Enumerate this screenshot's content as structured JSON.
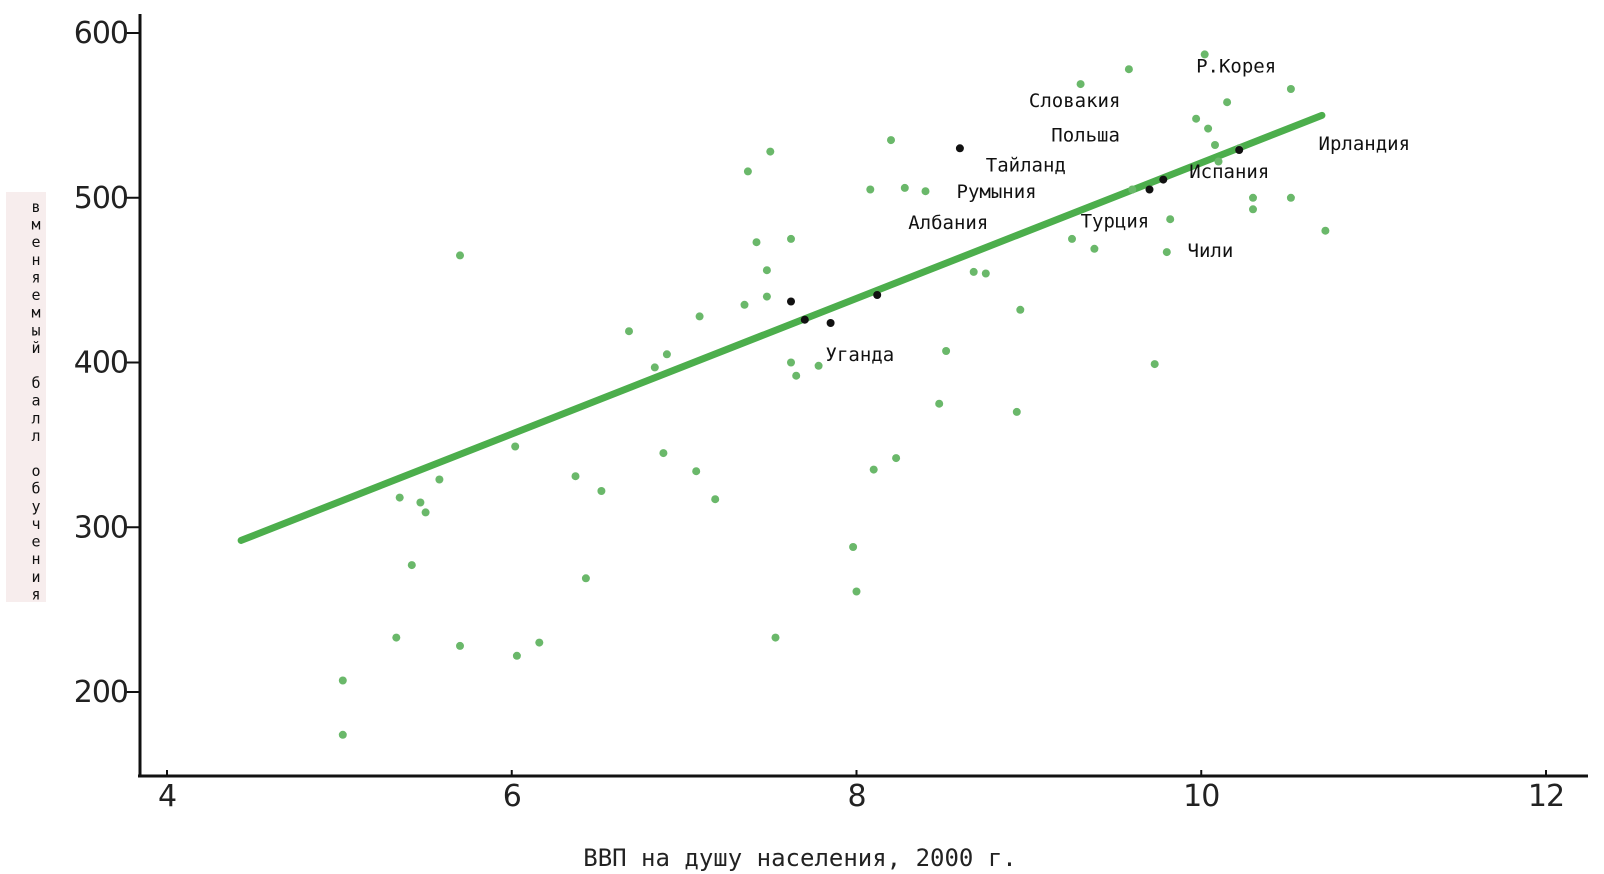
{
  "chart_data": {
    "type": "scatter",
    "xlabel": "ВВП на душу населения, 2000 г.",
    "ylabel": "вменяемый балл обучения",
    "xlim": [
      4,
      12
    ],
    "ylim": [
      175,
      610
    ],
    "x_ticks": [
      4,
      6,
      8,
      10,
      12
    ],
    "y_ticks": [
      200,
      300,
      400,
      500,
      600
    ],
    "grid": false,
    "colors": {
      "points": "#6ab86a",
      "trend": "#4cae4c",
      "highlight": "#111111",
      "axis": "#111111"
    },
    "trend_line": {
      "x": [
        4.43,
        10.7
      ],
      "y": [
        292,
        550
      ]
    },
    "points": [
      {
        "x": 5.02,
        "y": 207
      },
      {
        "x": 5.02,
        "y": 174
      },
      {
        "x": 5.33,
        "y": 233
      },
      {
        "x": 5.35,
        "y": 318
      },
      {
        "x": 5.47,
        "y": 315
      },
      {
        "x": 5.5,
        "y": 309
      },
      {
        "x": 5.58,
        "y": 329
      },
      {
        "x": 5.42,
        "y": 277
      },
      {
        "x": 5.7,
        "y": 228
      },
      {
        "x": 5.7,
        "y": 465
      },
      {
        "x": 6.02,
        "y": 349
      },
      {
        "x": 6.03,
        "y": 222
      },
      {
        "x": 6.16,
        "y": 230
      },
      {
        "x": 6.37,
        "y": 331
      },
      {
        "x": 6.43,
        "y": 269
      },
      {
        "x": 6.52,
        "y": 322
      },
      {
        "x": 6.68,
        "y": 419
      },
      {
        "x": 6.83,
        "y": 397
      },
      {
        "x": 6.9,
        "y": 405
      },
      {
        "x": 6.88,
        "y": 345
      },
      {
        "x": 7.07,
        "y": 334
      },
      {
        "x": 7.09,
        "y": 428
      },
      {
        "x": 7.18,
        "y": 317
      },
      {
        "x": 7.35,
        "y": 435
      },
      {
        "x": 7.37,
        "y": 516
      },
      {
        "x": 7.42,
        "y": 473
      },
      {
        "x": 7.48,
        "y": 456
      },
      {
        "x": 7.5,
        "y": 528
      },
      {
        "x": 7.48,
        "y": 440
      },
      {
        "x": 7.53,
        "y": 233
      },
      {
        "x": 7.62,
        "y": 475
      },
      {
        "x": 7.62,
        "y": 400
      },
      {
        "x": 7.65,
        "y": 392
      },
      {
        "x": 7.78,
        "y": 398
      },
      {
        "x": 7.98,
        "y": 288
      },
      {
        "x": 8.0,
        "y": 261
      },
      {
        "x": 8.08,
        "y": 505
      },
      {
        "x": 8.1,
        "y": 335
      },
      {
        "x": 8.2,
        "y": 535
      },
      {
        "x": 8.23,
        "y": 342
      },
      {
        "x": 8.28,
        "y": 506
      },
      {
        "x": 8.4,
        "y": 504
      },
      {
        "x": 8.48,
        "y": 375
      },
      {
        "x": 8.52,
        "y": 407
      },
      {
        "x": 8.68,
        "y": 455
      },
      {
        "x": 8.75,
        "y": 454
      },
      {
        "x": 8.93,
        "y": 370
      },
      {
        "x": 8.95,
        "y": 432
      },
      {
        "x": 9.25,
        "y": 475
      },
      {
        "x": 9.3,
        "y": 569
      },
      {
        "x": 9.38,
        "y": 469
      },
      {
        "x": 9.58,
        "y": 578
      },
      {
        "x": 9.6,
        "y": 505
      },
      {
        "x": 9.73,
        "y": 399
      },
      {
        "x": 9.8,
        "y": 467
      },
      {
        "x": 9.82,
        "y": 487
      },
      {
        "x": 9.97,
        "y": 548
      },
      {
        "x": 10.02,
        "y": 587
      },
      {
        "x": 10.04,
        "y": 542
      },
      {
        "x": 10.08,
        "y": 532
      },
      {
        "x": 10.1,
        "y": 522
      },
      {
        "x": 10.15,
        "y": 558
      },
      {
        "x": 10.22,
        "y": 530
      },
      {
        "x": 10.3,
        "y": 500
      },
      {
        "x": 10.3,
        "y": 493
      },
      {
        "x": 10.52,
        "y": 566
      },
      {
        "x": 10.52,
        "y": 500
      },
      {
        "x": 10.72,
        "y": 480
      }
    ],
    "highlighted_points": [
      {
        "x": 7.7,
        "y": 426
      },
      {
        "x": 7.85,
        "y": 424
      },
      {
        "x": 8.12,
        "y": 441
      },
      {
        "x": 7.62,
        "y": 437
      },
      {
        "x": 8.6,
        "y": 530
      },
      {
        "x": 9.7,
        "y": 505
      },
      {
        "x": 9.78,
        "y": 511
      },
      {
        "x": 10.22,
        "y": 529
      }
    ],
    "annotations": [
      {
        "text": "Р.Корея",
        "x": 9.97,
        "y": 576
      },
      {
        "text": "Словакия",
        "x": 9.0,
        "y": 555
      },
      {
        "text": "Польша",
        "x": 9.13,
        "y": 534
      },
      {
        "text": "Ирландия",
        "x": 10.68,
        "y": 529
      },
      {
        "text": "Тайланд",
        "x": 8.75,
        "y": 516
      },
      {
        "text": "Испания",
        "x": 9.93,
        "y": 512
      },
      {
        "text": "Румыния",
        "x": 8.58,
        "y": 500
      },
      {
        "text": "Турция",
        "x": 9.3,
        "y": 482
      },
      {
        "text": "Албания",
        "x": 8.3,
        "y": 481
      },
      {
        "text": "Чили",
        "x": 9.92,
        "y": 464
      },
      {
        "text": "Уганда",
        "x": 7.82,
        "y": 401
      }
    ]
  }
}
